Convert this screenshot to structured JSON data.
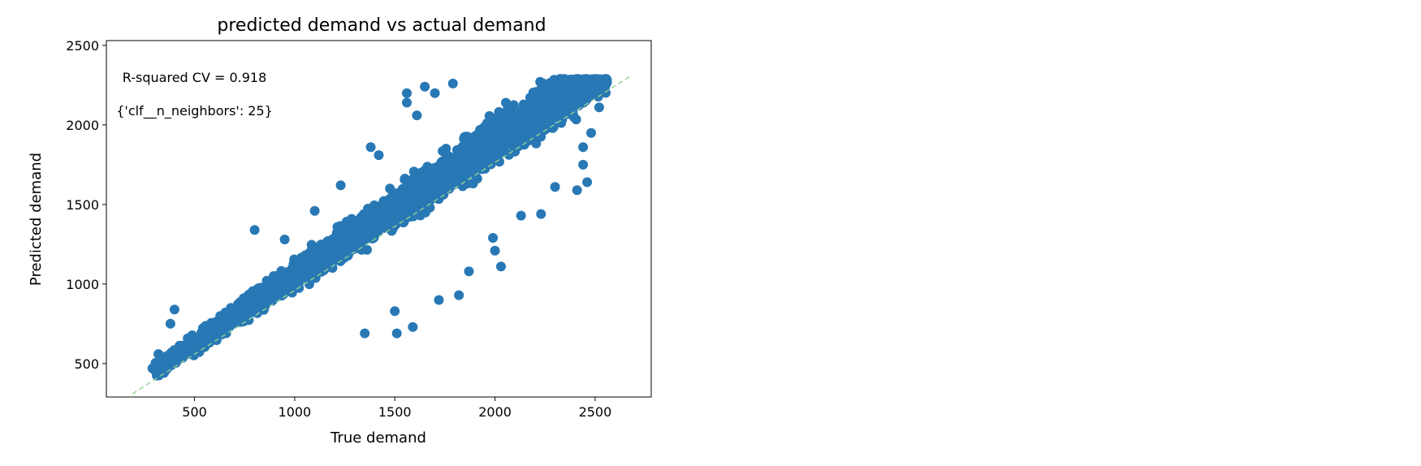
{
  "chart_data": {
    "type": "scatter",
    "title": "predicted demand vs actual demand",
    "xlabel": "True demand",
    "ylabel": "Predicted demand",
    "xlim": [
      60,
      2780
    ],
    "ylim": [
      290,
      2530
    ],
    "xticks": [
      500,
      1000,
      1500,
      2000,
      2500
    ],
    "yticks": [
      500,
      1000,
      1500,
      2000,
      2500
    ],
    "grid": false,
    "marker_color": "#2878b5",
    "reference_line": {
      "x": [
        190,
        2680
      ],
      "y": [
        310,
        2310
      ],
      "color": "#8fd18f",
      "style": "dashed"
    },
    "annotations": [
      {
        "text": "R-squared CV = 0.918",
        "x": 500,
        "y": 2270
      },
      {
        "text": "{'clf__n_neighbors': 25}",
        "x": 500,
        "y": 2060
      }
    ],
    "band": {
      "x_range": [
        300,
        2560
      ],
      "slope": 0.85,
      "intercept": 200,
      "half_width_start": 70,
      "half_width_end": 260
    },
    "outliers": [
      {
        "x": 1350,
        "y": 690
      },
      {
        "x": 1510,
        "y": 690
      },
      {
        "x": 1590,
        "y": 730
      },
      {
        "x": 1500,
        "y": 830
      },
      {
        "x": 1720,
        "y": 900
      },
      {
        "x": 1820,
        "y": 930
      },
      {
        "x": 1870,
        "y": 1080
      },
      {
        "x": 2030,
        "y": 1110
      },
      {
        "x": 2000,
        "y": 1210
      },
      {
        "x": 1990,
        "y": 1290
      },
      {
        "x": 2230,
        "y": 1440
      },
      {
        "x": 2130,
        "y": 1430
      },
      {
        "x": 2410,
        "y": 1590
      },
      {
        "x": 2460,
        "y": 1640
      },
      {
        "x": 2440,
        "y": 1750
      },
      {
        "x": 2440,
        "y": 1860
      },
      {
        "x": 2480,
        "y": 1950
      },
      {
        "x": 2520,
        "y": 2110
      },
      {
        "x": 2550,
        "y": 2240
      },
      {
        "x": 1380,
        "y": 1860
      },
      {
        "x": 1420,
        "y": 1810
      },
      {
        "x": 1560,
        "y": 2140
      },
      {
        "x": 1610,
        "y": 2060
      },
      {
        "x": 1560,
        "y": 2200
      },
      {
        "x": 1650,
        "y": 2240
      },
      {
        "x": 1700,
        "y": 2200
      },
      {
        "x": 1790,
        "y": 2260
      },
      {
        "x": 400,
        "y": 840
      },
      {
        "x": 380,
        "y": 750
      },
      {
        "x": 320,
        "y": 560
      },
      {
        "x": 290,
        "y": 470
      },
      {
        "x": 1100,
        "y": 1460
      },
      {
        "x": 800,
        "y": 1340
      },
      {
        "x": 950,
        "y": 1280
      },
      {
        "x": 1230,
        "y": 1620
      },
      {
        "x": 2300,
        "y": 1610
      }
    ]
  }
}
